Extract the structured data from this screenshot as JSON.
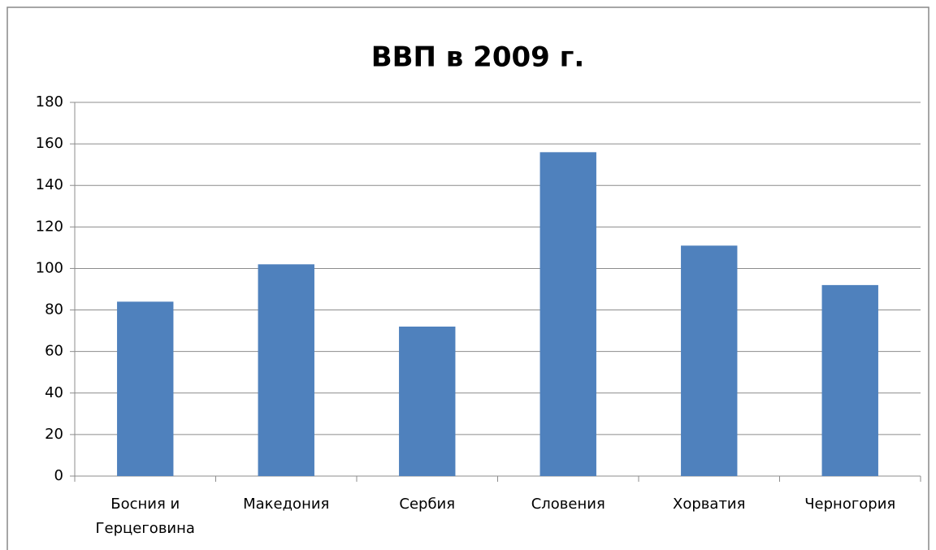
{
  "chart_data": {
    "type": "bar",
    "title": "ВВП в 2009 г.",
    "categories": [
      "Босния и Герцеговина",
      "Македония",
      "Сербия",
      "Словения",
      "Хорватия",
      "Черногория"
    ],
    "values": [
      84,
      102,
      72,
      156,
      111,
      92
    ],
    "color": "#4f81bd",
    "ylim": [
      0,
      180
    ],
    "yticks": [
      0,
      20,
      40,
      60,
      80,
      100,
      120,
      140,
      160,
      180
    ],
    "grid": true
  }
}
